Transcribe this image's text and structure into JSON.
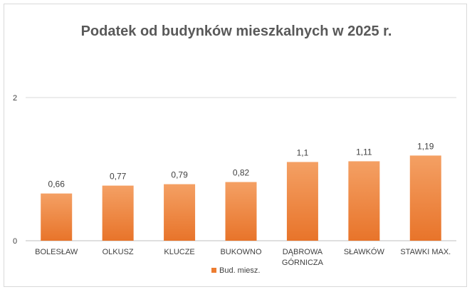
{
  "chart_data": {
    "type": "bar",
    "title": "Podatek od budynków mieszkalnych w 2025 r.",
    "categories": [
      [
        "BOLESŁAW"
      ],
      [
        "OLKUSZ"
      ],
      [
        "KLUCZE"
      ],
      [
        "BUKOWNO"
      ],
      [
        "DĄBROWA",
        "GÓRNICZA"
      ],
      [
        "SŁAWKÓW"
      ],
      [
        "STAWKI MAX."
      ]
    ],
    "series": [
      {
        "name": "Bud. miesz.",
        "values": [
          0.66,
          0.77,
          0.79,
          0.82,
          1.1,
          1.11,
          1.19
        ],
        "labels": [
          "0,66",
          "0,77",
          "0,79",
          "0,82",
          "1,1",
          "1,11",
          "1,19"
        ],
        "color": "#ED7D31"
      }
    ],
    "ylim": [
      0,
      2
    ],
    "yticks": [
      {
        "value": 0,
        "label": "0"
      },
      {
        "value": 2,
        "label": "2"
      }
    ],
    "grid": true,
    "legend_position": "bottom"
  }
}
